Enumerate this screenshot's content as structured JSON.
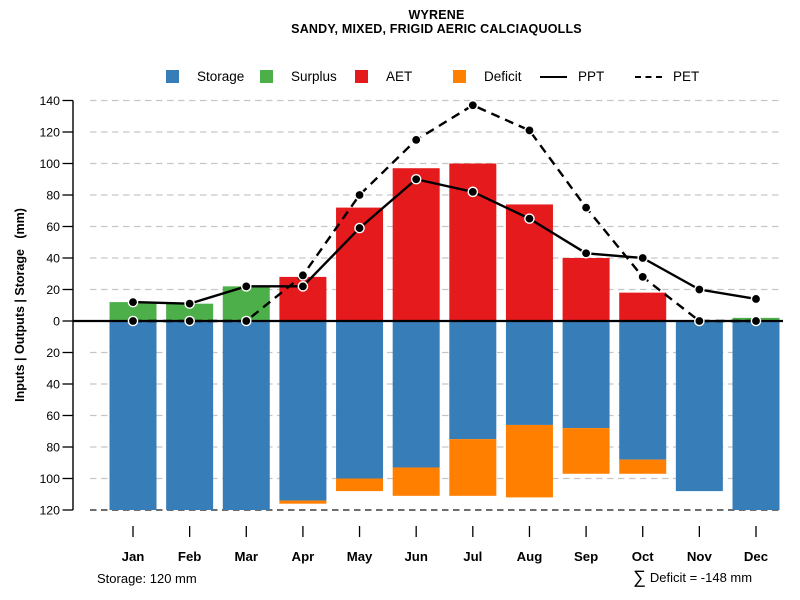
{
  "title": {
    "line1": "WYRENE",
    "line2": "SANDY, MIXED, FRIGID AERIC CALCIAQUOLLS"
  },
  "legend": {
    "items": [
      {
        "label": "Storage",
        "swatch": "box",
        "color": "#377EB8"
      },
      {
        "label": "Surplus",
        "swatch": "box",
        "color": "#4DAF4A"
      },
      {
        "label": "AET",
        "swatch": "box",
        "color": "#E41A1C"
      },
      {
        "label": "Deficit",
        "swatch": "box",
        "color": "#FF7F00"
      },
      {
        "label": "PPT",
        "swatch": "line-solid",
        "color": "#000000"
      },
      {
        "label": "PET",
        "swatch": "line-dashed",
        "color": "#000000"
      }
    ]
  },
  "chart_data": {
    "type": "bar",
    "subtype": "soil water balance: stacked bars above/below zero with PPT/PET line overlays",
    "categories": [
      "Jan",
      "Feb",
      "Mar",
      "Apr",
      "May",
      "Jun",
      "Jul",
      "Aug",
      "Sep",
      "Oct",
      "Nov",
      "Dec"
    ],
    "series": [
      {
        "name": "Storage",
        "plot": "bar-below-zero",
        "color": "#377EB8",
        "values": [
          -120,
          -120,
          -120,
          -114,
          -100,
          -93,
          -75,
          -66,
          -68,
          -88,
          -108,
          -120
        ]
      },
      {
        "name": "Deficit",
        "plot": "bar-stacked-below-storage",
        "color": "#FF7F00",
        "values": [
          0,
          0,
          0,
          -2,
          -8,
          -18,
          -36,
          -46,
          -29,
          -9,
          0,
          0
        ]
      },
      {
        "name": "Surplus",
        "plot": "bar-above-zero",
        "color": "#4DAF4A",
        "values": [
          12,
          11,
          22,
          0,
          0,
          0,
          0,
          0,
          0,
          0,
          0,
          2
        ]
      },
      {
        "name": "AET",
        "plot": "bar-above-zero",
        "color": "#E41A1C",
        "values": [
          0,
          0,
          0,
          28,
          72,
          97,
          100,
          74,
          40,
          18,
          0,
          0
        ]
      },
      {
        "name": "PPT",
        "plot": "line-solid",
        "color": "#000000",
        "values": [
          12,
          11,
          22,
          22,
          59,
          90,
          82,
          65,
          43,
          40,
          20,
          14
        ]
      },
      {
        "name": "PET",
        "plot": "line-dashed",
        "color": "#000000",
        "values": [
          0,
          0,
          0,
          29,
          80,
          115,
          137,
          121,
          72,
          28,
          0,
          0
        ]
      }
    ],
    "ylabel": "Inputs | Outputs | Storage   (mm)",
    "ylim": [
      -120,
      140
    ],
    "yticks": [
      140,
      120,
      100,
      80,
      60,
      40,
      20,
      0,
      -20,
      -40,
      -60,
      -80,
      -100,
      -120
    ],
    "ytick_labels_absolute": true,
    "grid": "horizontal-dashed",
    "legend_position": "top"
  },
  "footer": {
    "storage_note": "Storage: 120 mm",
    "sigma": "∑",
    "deficit_note": "Deficit = -148 mm"
  }
}
